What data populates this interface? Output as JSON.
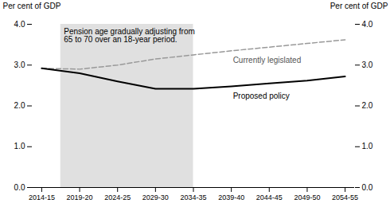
{
  "chart_data": {
    "type": "line",
    "categories": [
      "2014-15",
      "2019-20",
      "2024-25",
      "2029-30",
      "2034-35",
      "2039-40",
      "2044-45",
      "2049-50",
      "2054-55"
    ],
    "series": [
      {
        "name": "Currently legislated",
        "color": "#999999",
        "line_style": "dashed",
        "values": [
          2.92,
          2.9,
          3.0,
          3.15,
          3.25,
          3.35,
          3.44,
          3.53,
          3.62
        ]
      },
      {
        "name": "Proposed policy",
        "color": "#000000",
        "line_style": "solid",
        "values": [
          2.92,
          2.8,
          2.6,
          2.42,
          2.42,
          2.48,
          2.55,
          2.62,
          2.72
        ]
      }
    ],
    "y_label": "Per cent of GDP",
    "y2_label": "Per cent of GDP",
    "ylim": [
      0,
      4
    ],
    "yticks": [
      0,
      1,
      2,
      3,
      4
    ],
    "y2lim": [
      0,
      4
    ],
    "y2ticks": [
      0,
      1,
      2,
      3,
      4
    ],
    "shaded_span": {
      "from": 0.5,
      "to": 4.0,
      "color": "#e0e0e0"
    },
    "annotation": "Pension age gradually adjusting from\n65 to 70 over an 18-year period.",
    "grid": false
  }
}
